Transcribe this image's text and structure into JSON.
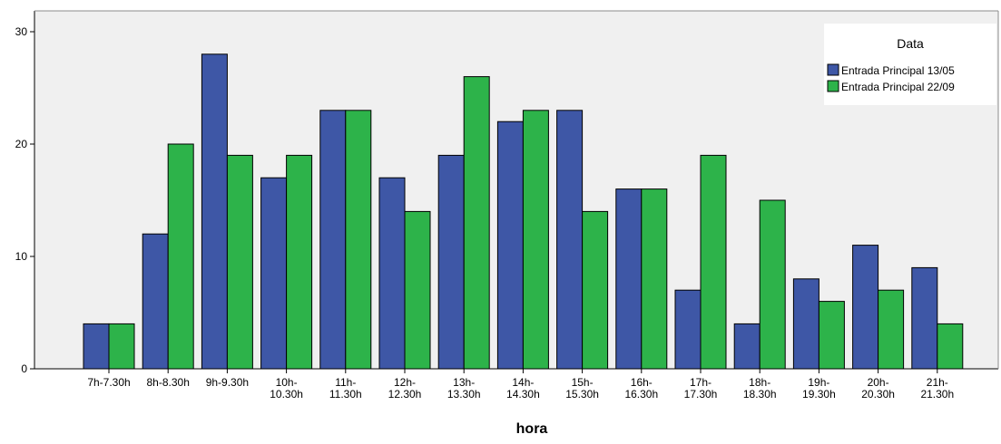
{
  "chart_data": {
    "type": "bar",
    "title": "",
    "xlabel": "hora",
    "ylabel": "",
    "ylim": [
      0,
      30
    ],
    "yticks": [
      0,
      10,
      20,
      30
    ],
    "grid": false,
    "legend_position": "top-right",
    "legend_title": "Data",
    "categories": [
      [
        "7h-7.30h"
      ],
      [
        "8h-8.30h"
      ],
      [
        "9h-9.30h"
      ],
      [
        "10h-",
        "10.30h"
      ],
      [
        "11h-",
        "11.30h"
      ],
      [
        "12h-",
        "12.30h"
      ],
      [
        "13h-",
        "13.30h"
      ],
      [
        "14h-",
        "14.30h"
      ],
      [
        "15h-",
        "15.30h"
      ],
      [
        "16h-",
        "16.30h"
      ],
      [
        "17h-",
        "17.30h"
      ],
      [
        "18h-",
        "18.30h"
      ],
      [
        "19h-",
        "19.30h"
      ],
      [
        "20h-",
        "20.30h"
      ],
      [
        "21h-",
        "21.30h"
      ]
    ],
    "series": [
      {
        "name": "Entrada Principal 13/05",
        "color": "#3e57a6",
        "values": [
          4,
          12,
          28,
          17,
          23,
          17,
          19,
          22,
          23,
          16,
          7,
          4,
          8,
          11,
          9
        ]
      },
      {
        "name": "Entrada Principal 22/09",
        "color": "#2db34a",
        "values": [
          4,
          20,
          19,
          19,
          23,
          14,
          26,
          23,
          14,
          16,
          19,
          15,
          6,
          7,
          4
        ]
      }
    ],
    "colors": {
      "plot_background": "#f0f0f0",
      "bar_outline": "#000000"
    }
  }
}
